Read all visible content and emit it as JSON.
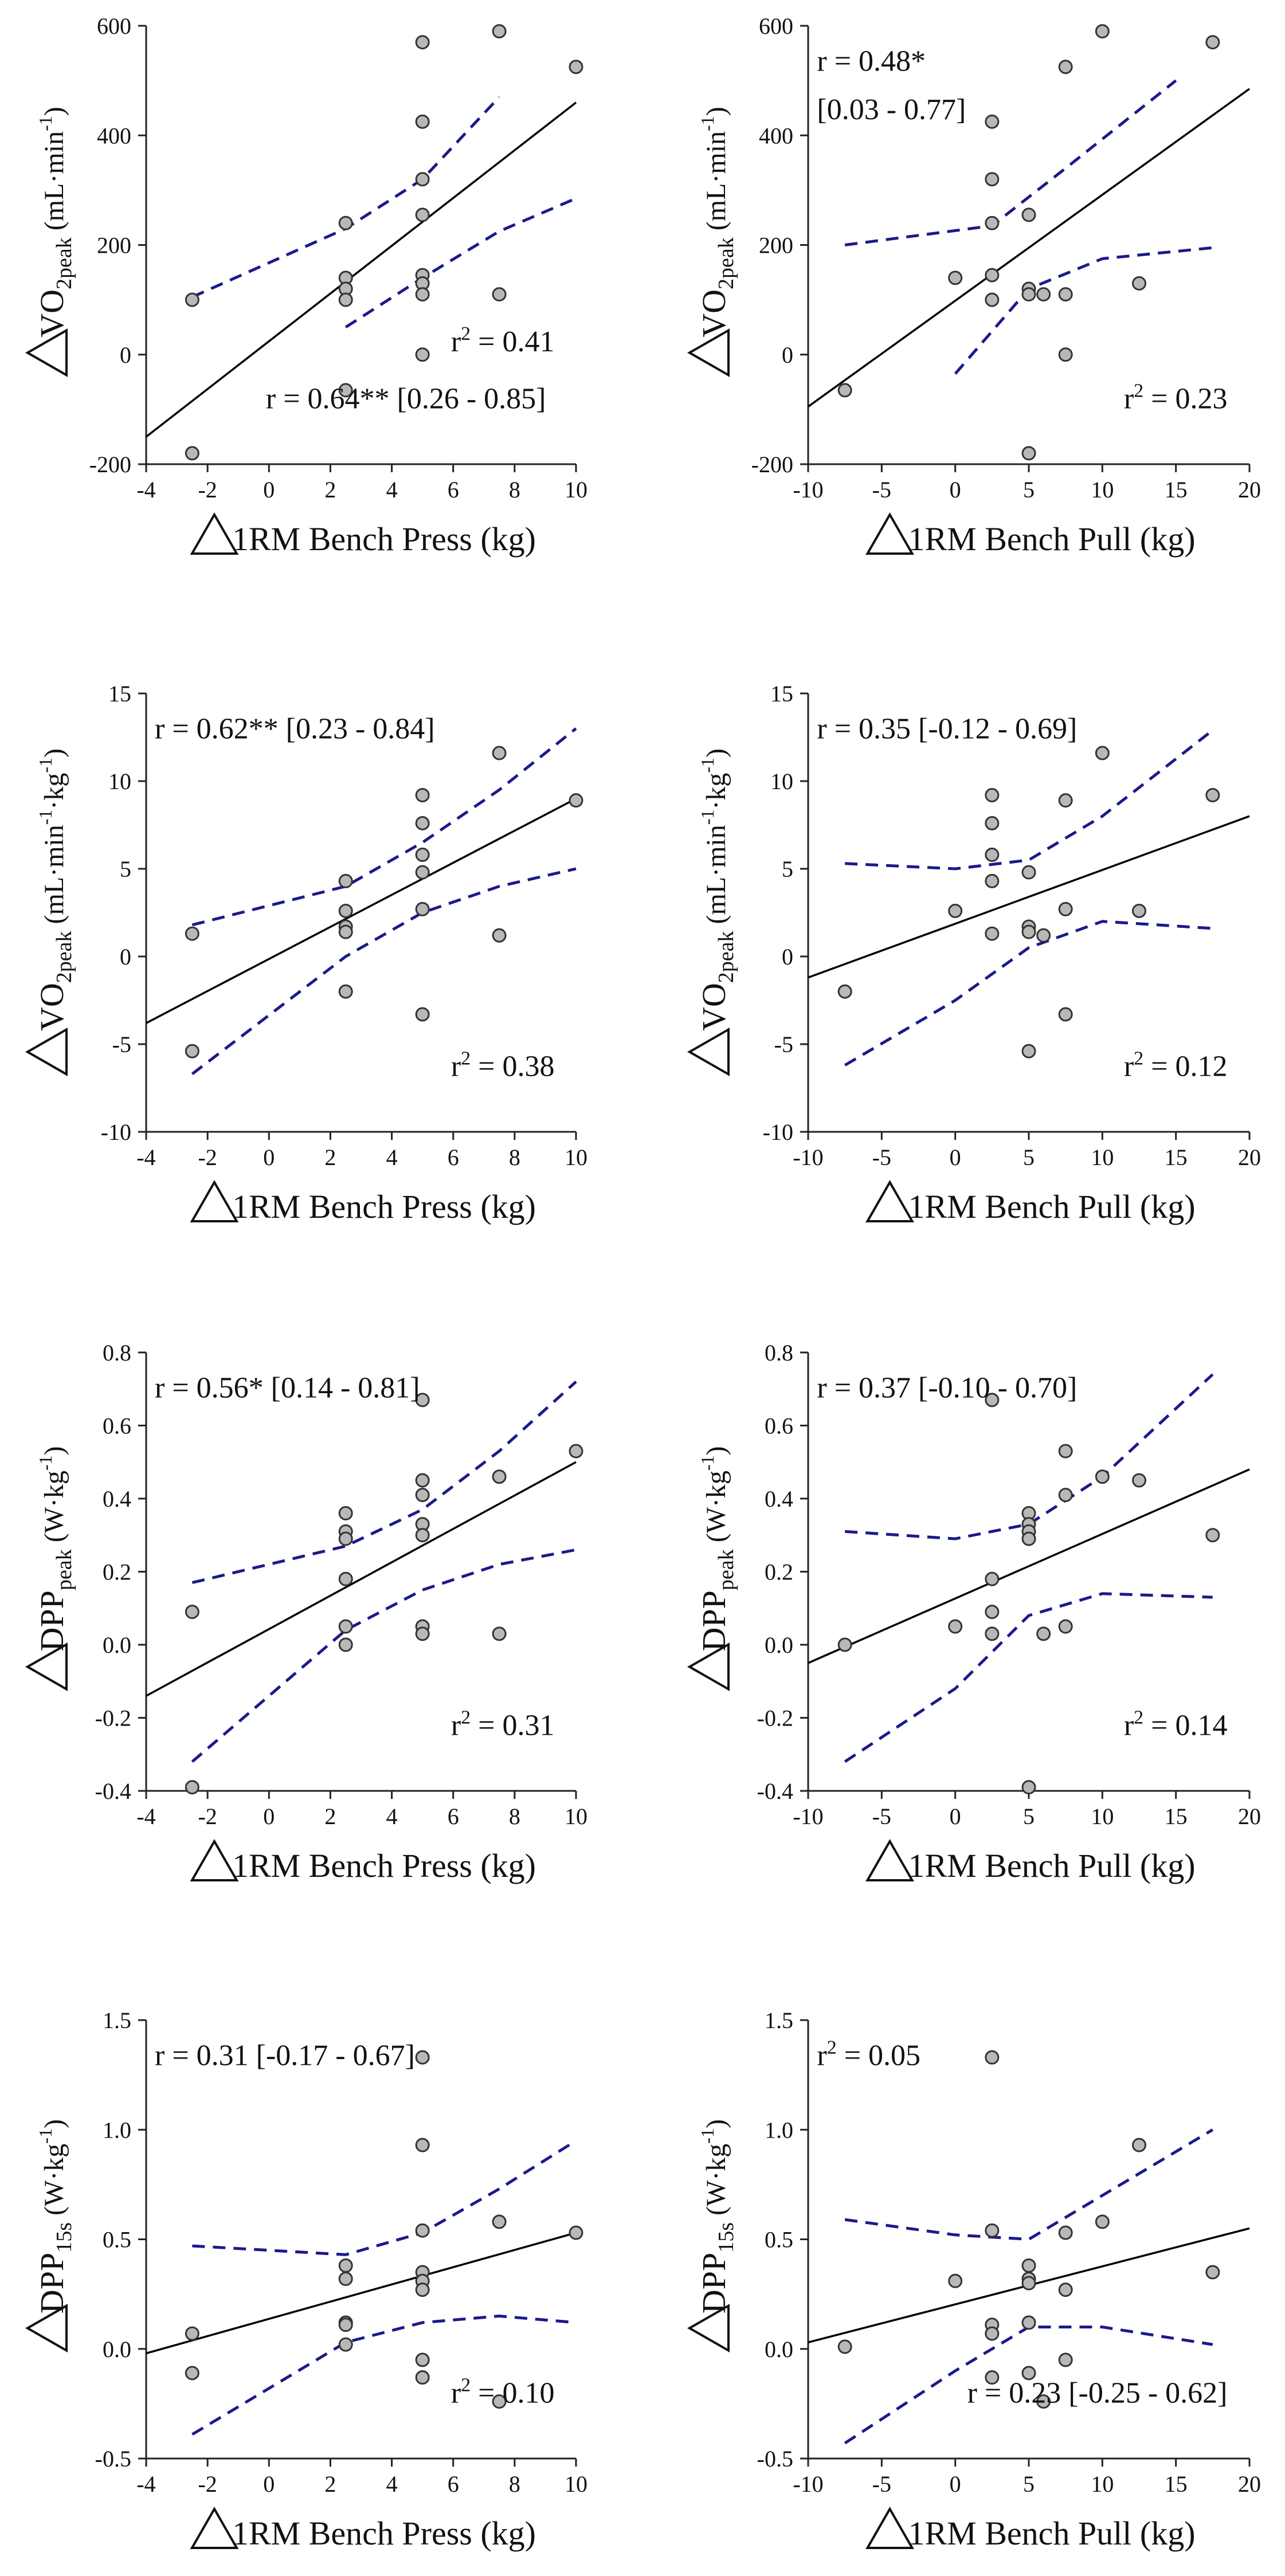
{
  "chart_data": [
    {
      "type": "scatter",
      "xlabel": "1RM Bench Press (kg)",
      "ylabel_main": "VO",
      "ylabel_sub": "2peak",
      "ylabel_unit": "(mL·min",
      "ylabel_unit_sup": "-1",
      "ylabel_unit_tail": ")",
      "xlim": [
        -4,
        10
      ],
      "ylim": [
        -200,
        600
      ],
      "xticks": [
        -4,
        -2,
        0,
        2,
        4,
        6,
        8,
        10
      ],
      "yticks": [
        -200,
        0,
        200,
        400,
        600
      ],
      "points": [
        [
          -2.5,
          100
        ],
        [
          -2.5,
          -180
        ],
        [
          2.5,
          240
        ],
        [
          2.5,
          140
        ],
        [
          2.5,
          120
        ],
        [
          2.5,
          100
        ],
        [
          2.5,
          -65
        ],
        [
          5,
          570
        ],
        [
          5,
          425
        ],
        [
          5,
          320
        ],
        [
          5,
          255
        ],
        [
          5,
          145
        ],
        [
          5,
          130
        ],
        [
          5,
          110
        ],
        [
          5,
          0
        ],
        [
          7.5,
          590
        ],
        [
          7.5,
          110
        ],
        [
          10,
          525
        ]
      ],
      "fit": [
        [
          -4,
          -150
        ],
        [
          10,
          460
        ]
      ],
      "ci_lower": [
        [
          2.5,
          50
        ],
        [
          5,
          140
        ],
        [
          7.5,
          225
        ],
        [
          10,
          285
        ]
      ],
      "ci_upper": [
        [
          -2.5,
          105
        ],
        [
          2.5,
          230
        ],
        [
          5,
          320
        ],
        [
          7.5,
          470
        ]
      ],
      "annotations": [
        {
          "id": "r2",
          "text": "r² = 0.41",
          "base": "r",
          "sup": "2",
          "rest": " = 0.41"
        },
        {
          "id": "r",
          "text": "r = 0.64** [0.26 - 0.85]"
        }
      ]
    },
    {
      "type": "scatter",
      "xlabel": "1RM Bench Pull (kg)",
      "ylabel_main": "VO",
      "ylabel_sub": "2peak",
      "ylabel_unit": "(mL·min",
      "ylabel_unit_sup": "-1",
      "ylabel_unit_tail": ")",
      "xlim": [
        -10,
        20
      ],
      "ylim": [
        -200,
        600
      ],
      "xticks": [
        -10,
        -5,
        0,
        5,
        10,
        15,
        20
      ],
      "yticks": [
        -200,
        0,
        200,
        400,
        600
      ],
      "points": [
        [
          -7.5,
          -65
        ],
        [
          0,
          140
        ],
        [
          2.5,
          425
        ],
        [
          2.5,
          320
        ],
        [
          2.5,
          240
        ],
        [
          2.5,
          145
        ],
        [
          2.5,
          100
        ],
        [
          5,
          255
        ],
        [
          5,
          120
        ],
        [
          5,
          110
        ],
        [
          5,
          -180
        ],
        [
          6,
          110
        ],
        [
          7.5,
          525
        ],
        [
          7.5,
          110
        ],
        [
          7.5,
          0
        ],
        [
          10,
          590
        ],
        [
          12.5,
          130
        ],
        [
          17.5,
          570
        ]
      ],
      "fit": [
        [
          -10,
          -95
        ],
        [
          20,
          485
        ]
      ],
      "ci_lower": [
        [
          0,
          -35
        ],
        [
          5,
          120
        ],
        [
          10,
          175
        ],
        [
          17.5,
          195
        ]
      ],
      "ci_upper": [
        [
          -7.5,
          200
        ],
        [
          2.5,
          235
        ],
        [
          7.5,
          340
        ],
        [
          15,
          500
        ]
      ],
      "annotations": [
        {
          "id": "r",
          "text": "r = 0.48*"
        },
        {
          "id": "ci",
          "text": "[0.03 - 0.77]"
        },
        {
          "id": "r2",
          "text": "r² = 0.23",
          "base": "r",
          "sup": "2",
          "rest": " = 0.23"
        }
      ]
    },
    {
      "type": "scatter",
      "xlabel": "1RM Bench Press (kg)",
      "ylabel_main": "VO",
      "ylabel_sub": "2peak",
      "ylabel_unit": "(mL·min",
      "ylabel_unit_sup": "-1",
      "ylabel_unit_mid": "·kg",
      "ylabel_unit_sup2": "-1",
      "ylabel_unit_tail": ")",
      "xlim": [
        -4,
        10
      ],
      "ylim": [
        -10,
        15
      ],
      "xticks": [
        -4,
        -2,
        0,
        2,
        4,
        6,
        8,
        10
      ],
      "yticks": [
        -10,
        -5,
        0,
        5,
        10,
        15
      ],
      "points": [
        [
          -2.5,
          1.3
        ],
        [
          -2.5,
          -5.4
        ],
        [
          2.5,
          4.3
        ],
        [
          2.5,
          2.6
        ],
        [
          2.5,
          1.7
        ],
        [
          2.5,
          1.4
        ],
        [
          2.5,
          -2
        ],
        [
          5,
          9.2
        ],
        [
          5,
          7.6
        ],
        [
          5,
          5.8
        ],
        [
          5,
          4.8
        ],
        [
          5,
          2.7
        ],
        [
          5,
          -3.3
        ],
        [
          7.5,
          11.6
        ],
        [
          7.5,
          1.2
        ],
        [
          10,
          8.9
        ]
      ],
      "fit": [
        [
          -4,
          -3.8
        ],
        [
          10,
          9
        ]
      ],
      "ci_lower": [
        [
          -2.5,
          -6.7
        ],
        [
          2.5,
          0
        ],
        [
          5,
          2.5
        ],
        [
          7.5,
          4
        ],
        [
          10,
          5
        ]
      ],
      "ci_upper": [
        [
          -2.5,
          1.8
        ],
        [
          2.5,
          4
        ],
        [
          5,
          6.5
        ],
        [
          7.5,
          9.5
        ],
        [
          10,
          13
        ]
      ],
      "annotations": [
        {
          "id": "r",
          "text": "r = 0.62** [0.23 - 0.84]"
        },
        {
          "id": "r2",
          "text": "r² = 0.38",
          "base": "r",
          "sup": "2",
          "rest": " = 0.38"
        }
      ]
    },
    {
      "type": "scatter",
      "xlabel": "1RM Bench Pull (kg)",
      "ylabel_main": "VO",
      "ylabel_sub": "2peak",
      "ylabel_unit": "(mL·min",
      "ylabel_unit_sup": "-1",
      "ylabel_unit_mid": "·kg",
      "ylabel_unit_sup2": "-1",
      "ylabel_unit_tail": ")",
      "xlim": [
        -10,
        20
      ],
      "ylim": [
        -10,
        15
      ],
      "xticks": [
        -10,
        -5,
        0,
        5,
        10,
        15,
        20
      ],
      "yticks": [
        -10,
        -5,
        0,
        5,
        10,
        15
      ],
      "points": [
        [
          -7.5,
          -2
        ],
        [
          0,
          2.6
        ],
        [
          2.5,
          9.2
        ],
        [
          2.5,
          7.6
        ],
        [
          2.5,
          5.8
        ],
        [
          2.5,
          4.3
        ],
        [
          2.5,
          1.3
        ],
        [
          5,
          4.8
        ],
        [
          5,
          1.7
        ],
        [
          5,
          1.4
        ],
        [
          5,
          -5.4
        ],
        [
          6,
          1.2
        ],
        [
          7.5,
          8.9
        ],
        [
          7.5,
          2.7
        ],
        [
          7.5,
          -3.3
        ],
        [
          10,
          11.6
        ],
        [
          12.5,
          2.6
        ],
        [
          17.5,
          9.2
        ]
      ],
      "fit": [
        [
          -10,
          -1.2
        ],
        [
          20,
          8
        ]
      ],
      "ci_lower": [
        [
          -7.5,
          -6.2
        ],
        [
          0,
          -2.5
        ],
        [
          5,
          0.5
        ],
        [
          10,
          2
        ],
        [
          17.5,
          1.6
        ]
      ],
      "ci_upper": [
        [
          -7.5,
          5.3
        ],
        [
          0,
          5
        ],
        [
          5,
          5.5
        ],
        [
          10,
          8
        ],
        [
          17.5,
          12.9
        ]
      ],
      "annotations": [
        {
          "id": "r",
          "text": "r = 0.35 [-0.12 - 0.69]"
        },
        {
          "id": "r2",
          "text": "r² = 0.12",
          "base": "r",
          "sup": "2",
          "rest": " = 0.12"
        }
      ]
    },
    {
      "type": "scatter",
      "xlabel": "1RM Bench Press (kg)",
      "ylabel_main": "DPP",
      "ylabel_sub": "peak",
      "ylabel_unit": "(W·kg",
      "ylabel_unit_sup": "-1",
      "ylabel_unit_tail": ")",
      "xlim": [
        -4,
        10
      ],
      "ylim": [
        -0.4,
        0.8
      ],
      "xticks": [
        -4,
        -2,
        0,
        2,
        4,
        6,
        8,
        10
      ],
      "yticks": [
        -0.4,
        -0.2,
        0.0,
        0.2,
        0.4,
        0.6,
        0.8
      ],
      "ytick_decimals": 1,
      "points": [
        [
          -2.5,
          0.09
        ],
        [
          -2.5,
          -0.39
        ],
        [
          2.5,
          0.36
        ],
        [
          2.5,
          0.31
        ],
        [
          2.5,
          0.29
        ],
        [
          2.5,
          0.18
        ],
        [
          2.5,
          0.05
        ],
        [
          2.5,
          0
        ],
        [
          5,
          0.67
        ],
        [
          5,
          0.45
        ],
        [
          5,
          0.41
        ],
        [
          5,
          0.33
        ],
        [
          5,
          0.3
        ],
        [
          5,
          0.05
        ],
        [
          5,
          0.03
        ],
        [
          7.5,
          0.46
        ],
        [
          7.5,
          0.03
        ],
        [
          10,
          0.53
        ]
      ],
      "fit": [
        [
          -4,
          -0.14
        ],
        [
          10,
          0.5
        ]
      ],
      "ci_lower": [
        [
          -2.5,
          -0.32
        ],
        [
          2.5,
          0.04
        ],
        [
          5,
          0.15
        ],
        [
          7.5,
          0.22
        ],
        [
          10,
          0.26
        ]
      ],
      "ci_upper": [
        [
          -2.5,
          0.17
        ],
        [
          2.5,
          0.27
        ],
        [
          5,
          0.37
        ],
        [
          7.5,
          0.53
        ],
        [
          10,
          0.72
        ]
      ],
      "annotations": [
        {
          "id": "r",
          "text": "r = 0.56* [0.14 - 0.81]"
        },
        {
          "id": "r2",
          "text": "r² = 0.31",
          "base": "r",
          "sup": "2",
          "rest": " = 0.31"
        }
      ]
    },
    {
      "type": "scatter",
      "xlabel": "1RM Bench Pull (kg)",
      "ylabel_main": "DPP",
      "ylabel_sub": "peak",
      "ylabel_unit": "(W·kg",
      "ylabel_unit_sup": "-1",
      "ylabel_unit_tail": ")",
      "xlim": [
        -10,
        20
      ],
      "ylim": [
        -0.4,
        0.8
      ],
      "xticks": [
        -10,
        -5,
        0,
        5,
        10,
        15,
        20
      ],
      "yticks": [
        -0.4,
        -0.2,
        0.0,
        0.2,
        0.4,
        0.6,
        0.8
      ],
      "ytick_decimals": 1,
      "points": [
        [
          -7.5,
          0
        ],
        [
          0,
          0.05
        ],
        [
          2.5,
          0.67
        ],
        [
          2.5,
          0.18
        ],
        [
          2.5,
          0.09
        ],
        [
          2.5,
          0.03
        ],
        [
          5,
          0.36
        ],
        [
          5,
          0.33
        ],
        [
          5,
          0.31
        ],
        [
          5,
          0.29
        ],
        [
          5,
          -0.39
        ],
        [
          6,
          0.03
        ],
        [
          7.5,
          0.53
        ],
        [
          7.5,
          0.41
        ],
        [
          7.5,
          0.05
        ],
        [
          10,
          0.46
        ],
        [
          12.5,
          0.45
        ],
        [
          17.5,
          0.3
        ]
      ],
      "fit": [
        [
          -10,
          -0.05
        ],
        [
          20,
          0.48
        ]
      ],
      "ci_lower": [
        [
          -7.5,
          -0.32
        ],
        [
          0,
          -0.12
        ],
        [
          5,
          0.08
        ],
        [
          10,
          0.14
        ],
        [
          17.5,
          0.13
        ]
      ],
      "ci_upper": [
        [
          -7.5,
          0.31
        ],
        [
          0,
          0.29
        ],
        [
          5,
          0.33
        ],
        [
          10,
          0.46
        ],
        [
          17.5,
          0.74
        ]
      ],
      "annotations": [
        {
          "id": "r",
          "text": "r = 0.37 [-0.10 - 0.70]"
        },
        {
          "id": "r2",
          "text": "r² = 0.14",
          "base": "r",
          "sup": "2",
          "rest": " = 0.14"
        }
      ]
    },
    {
      "type": "scatter",
      "xlabel": "1RM Bench Press (kg)",
      "ylabel_main": "DPP",
      "ylabel_sub": "15s",
      "ylabel_unit": "(W·kg",
      "ylabel_unit_sup": "-1",
      "ylabel_unit_tail": ")",
      "xlim": [
        -4,
        10
      ],
      "ylim": [
        -0.5,
        1.5
      ],
      "xticks": [
        -4,
        -2,
        0,
        2,
        4,
        6,
        8,
        10
      ],
      "yticks": [
        -0.5,
        0.0,
        0.5,
        1.0,
        1.5
      ],
      "ytick_decimals": 1,
      "points": [
        [
          -2.5,
          0.07
        ],
        [
          -2.5,
          -0.11
        ],
        [
          2.5,
          0.38
        ],
        [
          2.5,
          0.32
        ],
        [
          2.5,
          0.12
        ],
        [
          2.5,
          0.11
        ],
        [
          2.5,
          0.02
        ],
        [
          5,
          1.33
        ],
        [
          5,
          0.93
        ],
        [
          5,
          0.54
        ],
        [
          5,
          0.35
        ],
        [
          5,
          0.31
        ],
        [
          5,
          0.27
        ],
        [
          5,
          -0.05
        ],
        [
          5,
          -0.13
        ],
        [
          7.5,
          0.58
        ],
        [
          7.5,
          -0.24
        ],
        [
          10,
          0.53
        ]
      ],
      "fit": [
        [
          -4,
          -0.02
        ],
        [
          10,
          0.53
        ]
      ],
      "ci_lower": [
        [
          -2.5,
          -0.39
        ],
        [
          2.5,
          0.03
        ],
        [
          5,
          0.12
        ],
        [
          7.5,
          0.15
        ],
        [
          10,
          0.12
        ]
      ],
      "ci_upper": [
        [
          -2.5,
          0.47
        ],
        [
          2.5,
          0.43
        ],
        [
          5,
          0.53
        ],
        [
          7.5,
          0.73
        ],
        [
          10,
          0.95
        ]
      ],
      "annotations": [
        {
          "id": "r",
          "text": "r = 0.31 [-0.17 - 0.67]"
        },
        {
          "id": "r2",
          "text": "r² = 0.10",
          "base": "r",
          "sup": "2",
          "rest": " = 0.10"
        }
      ]
    },
    {
      "type": "scatter",
      "xlabel": "1RM Bench Pull (kg)",
      "ylabel_main": "DPP",
      "ylabel_sub": "15s",
      "ylabel_unit": "(W·kg",
      "ylabel_unit_sup": "-1",
      "ylabel_unit_tail": ")",
      "xlim": [
        -10,
        20
      ],
      "ylim": [
        -0.5,
        1.5
      ],
      "xticks": [
        -10,
        -5,
        0,
        5,
        10,
        15,
        20
      ],
      "yticks": [
        -0.5,
        0.0,
        0.5,
        1.0,
        1.5
      ],
      "ytick_decimals": 1,
      "points": [
        [
          -7.5,
          0.01
        ],
        [
          0,
          0.31
        ],
        [
          2.5,
          1.33
        ],
        [
          2.5,
          0.54
        ],
        [
          2.5,
          0.11
        ],
        [
          2.5,
          0.07
        ],
        [
          2.5,
          -0.13
        ],
        [
          5,
          0.38
        ],
        [
          5,
          0.32
        ],
        [
          5,
          0.3
        ],
        [
          5,
          0.12
        ],
        [
          5,
          -0.11
        ],
        [
          6,
          -0.24
        ],
        [
          7.5,
          0.53
        ],
        [
          7.5,
          0.27
        ],
        [
          7.5,
          -0.05
        ],
        [
          10,
          0.58
        ],
        [
          12.5,
          0.93
        ],
        [
          17.5,
          0.35
        ]
      ],
      "fit": [
        [
          -10,
          0.03
        ],
        [
          20,
          0.55
        ]
      ],
      "ci_lower": [
        [
          -7.5,
          -0.43
        ],
        [
          0,
          -0.1
        ],
        [
          5,
          0.1
        ],
        [
          10,
          0.1
        ],
        [
          17.5,
          0.02
        ]
      ],
      "ci_upper": [
        [
          -7.5,
          0.59
        ],
        [
          0,
          0.52
        ],
        [
          5,
          0.5
        ],
        [
          10,
          0.7
        ],
        [
          17.5,
          1.0
        ]
      ],
      "annotations": [
        {
          "id": "r2",
          "text": "r² = 0.05",
          "base": "r",
          "sup": "2",
          "rest": " = 0.05"
        },
        {
          "id": "r",
          "text": "r = 0.23 [-0.25 - 0.62]"
        }
      ]
    }
  ],
  "style": {
    "point_fill": "#b8b8b8",
    "point_stroke": "#333333",
    "fit_color": "#000000",
    "ci_color": "#1a1a8c",
    "axis_color": "#222222"
  }
}
